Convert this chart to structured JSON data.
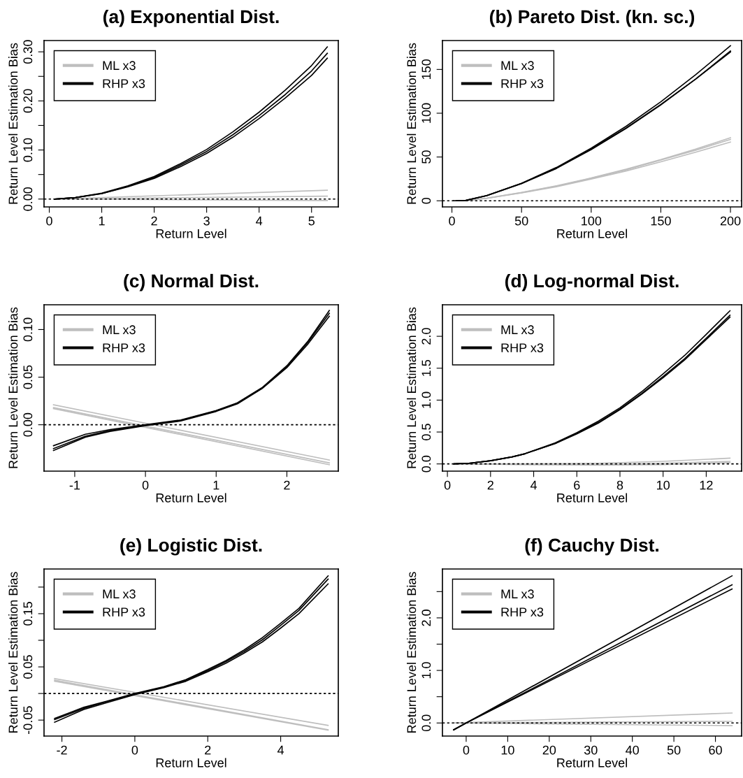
{
  "chart_data": [
    {
      "type": "line",
      "title": "(a) Exponential Dist.",
      "xlabel": "Return Level",
      "ylabel": "Return Level Estimation Bias",
      "legend": "top left",
      "xlim": [
        -0.1,
        5.51
      ],
      "xticks": [
        0,
        1,
        2,
        3,
        4,
        5
      ],
      "ylim": [
        -0.016,
        0.323
      ],
      "yticks": [
        {
          "value": 0,
          "label": "0.00"
        },
        {
          "value": 0.05,
          "label": null
        },
        {
          "value": 0.1,
          "label": "0.10"
        },
        {
          "value": 0.15,
          "label": null
        },
        {
          "value": 0.2,
          "label": "0.20"
        },
        {
          "value": 0.25,
          "label": null
        },
        {
          "value": 0.3,
          "label": "0.30"
        }
      ],
      "ref_lines": [
        {
          "axis": "y",
          "value": 0,
          "line_style": "dotted"
        }
      ],
      "series": [
        {
          "name": "ML x3",
          "color": "#bebebe",
          "x": [
            0.1,
            5.3
          ],
          "values": [
            0,
            0.018
          ]
        },
        {
          "color": "#bebebe",
          "x": [
            0.1,
            5.3
          ],
          "values": [
            0,
            0.006
          ]
        },
        {
          "color": "#bebebe",
          "x": [
            0.1,
            5.3
          ],
          "values": [
            0,
            -0.003
          ]
        },
        {
          "name": "RHP x3",
          "color": "#000000",
          "x": [
            0.1,
            0.5,
            1,
            1.5,
            2,
            2.5,
            3,
            3.5,
            4,
            4.5,
            5,
            5.3
          ],
          "values": [
            0,
            0.003,
            0.012,
            0.027,
            0.046,
            0.072,
            0.101,
            0.137,
            0.177,
            0.222,
            0.272,
            0.31
          ]
        },
        {
          "color": "#000000",
          "x": [
            0.1,
            0.5,
            1,
            1.5,
            2,
            2.5,
            3,
            3.5,
            4,
            4.5,
            5,
            5.3
          ],
          "values": [
            0,
            0.003,
            0.011,
            0.026,
            0.044,
            0.069,
            0.097,
            0.131,
            0.17,
            0.213,
            0.261,
            0.297
          ]
        },
        {
          "color": "#000000",
          "x": [
            0.1,
            0.5,
            1,
            1.5,
            2,
            2.5,
            3,
            3.5,
            4,
            4.5,
            5,
            5.3
          ],
          "values": [
            0,
            0.003,
            0.011,
            0.025,
            0.042,
            0.066,
            0.093,
            0.126,
            0.164,
            0.206,
            0.252,
            0.287
          ]
        }
      ]
    },
    {
      "type": "line",
      "title": "(b) Pareto Dist. (kn. sc.)",
      "xlabel": "Return Level",
      "ylabel": "Return Level Estimation Bias",
      "legend": "top left",
      "xlim": [
        -6.8,
        208
      ],
      "xticks": [
        0,
        50,
        100,
        150,
        200
      ],
      "ylim": [
        -7,
        183
      ],
      "yticks": [
        0,
        50,
        100,
        150
      ],
      "ref_lines": [
        {
          "axis": "y",
          "value": 0,
          "line_style": "dotted"
        }
      ],
      "series": [
        {
          "name": "ML x3",
          "color": "#bebebe",
          "x": [
            1,
            10,
            25,
            50,
            75,
            100,
            125,
            150,
            175,
            200
          ],
          "values": [
            0,
            0.3,
            3,
            9.5,
            17,
            26,
            36,
            47,
            59,
            72
          ]
        },
        {
          "color": "#bebebe",
          "x": [
            1,
            10,
            25,
            50,
            75,
            100,
            125,
            150,
            175,
            200
          ],
          "values": [
            0,
            0.3,
            2.9,
            9.3,
            16.6,
            25.7,
            35.4,
            46.5,
            57.8,
            70
          ]
        },
        {
          "color": "#bebebe",
          "x": [
            1,
            10,
            25,
            50,
            75,
            100,
            125,
            150,
            175,
            200
          ],
          "values": [
            0,
            0.3,
            2.8,
            9,
            16,
            24.8,
            34,
            44.5,
            55.5,
            67
          ]
        },
        {
          "name": "RHP x3",
          "color": "#000000",
          "x": [
            1,
            10,
            25,
            50,
            75,
            100,
            125,
            150,
            175,
            200
          ],
          "values": [
            0,
            0.5,
            6,
            20,
            38,
            60,
            85,
            113,
            144,
            177
          ]
        },
        {
          "color": "#000000",
          "x": [
            5,
            10,
            25,
            50,
            75,
            100,
            125,
            150,
            175,
            200
          ],
          "values": [
            0.1,
            0.5,
            6,
            20,
            37,
            59,
            83,
            110,
            139,
            171
          ]
        },
        {
          "color": "#000000",
          "x": [
            3,
            10,
            25,
            50,
            75,
            100,
            125,
            150,
            175,
            200
          ],
          "values": [
            0,
            0.4,
            5.8,
            19.5,
            37,
            58.5,
            82.5,
            109.5,
            139,
            170
          ]
        }
      ]
    },
    {
      "type": "line",
      "title": "(c) Normal Dist.",
      "xlabel": "Return Level",
      "ylabel": "Return Level Estimation Bias",
      "legend": "top left",
      "xlim": [
        -1.434,
        2.727
      ],
      "xticks": [
        -1,
        0,
        1,
        2
      ],
      "ylim": [
        -0.0487,
        0.126
      ],
      "yticks": [
        {
          "value": 0,
          "label": "0.00"
        },
        {
          "value": 0.05,
          "label": "0.05"
        },
        {
          "value": 0.1,
          "label": "0.10"
        }
      ],
      "ref_lines": [
        {
          "axis": "y",
          "value": 0,
          "line_style": "dotted"
        }
      ],
      "series": [
        {
          "name": "ML x3",
          "color": "#bebebe",
          "x": [
            -1.3,
            2.6
          ],
          "values": [
            0.021,
            -0.037
          ]
        },
        {
          "color": "#bebebe",
          "x": [
            -1.3,
            2.6
          ],
          "values": [
            0.018,
            -0.04
          ]
        },
        {
          "color": "#bebebe",
          "x": [
            -1.3,
            2.6
          ],
          "values": [
            0.017,
            -0.042
          ]
        },
        {
          "name": "RHP x3",
          "color": "#000000",
          "x": [
            -1.3,
            -0.85,
            -0.5,
            0,
            0.5,
            1,
            1.3,
            1.65,
            2,
            2.3,
            2.6
          ],
          "values": [
            -0.022,
            -0.01,
            -0.005,
            0,
            0.005,
            0.015,
            0.023,
            0.039,
            0.062,
            0.088,
            0.12
          ]
        },
        {
          "color": "#000000",
          "x": [
            -1.3,
            -0.85,
            -0.5,
            0,
            0.5,
            1,
            1.3,
            1.65,
            2,
            2.3,
            2.6
          ],
          "values": [
            -0.025,
            -0.012,
            -0.006,
            -0.0005,
            0.0045,
            0.0145,
            0.0225,
            0.0385,
            0.061,
            0.087,
            0.117
          ]
        },
        {
          "color": "#000000",
          "x": [
            -1.3,
            -0.85,
            -0.5,
            0,
            0.5,
            1,
            1.3,
            1.65,
            2,
            2.3,
            2.6
          ],
          "values": [
            -0.027,
            -0.013,
            -0.007,
            -0.001,
            0.004,
            0.014,
            0.022,
            0.038,
            0.06,
            0.085,
            0.114
          ]
        }
      ]
    },
    {
      "type": "line",
      "title": "(d) Log-normal Dist.",
      "xlabel": "Return Level",
      "ylabel": "Return Level Estimation Bias",
      "legend": "top left",
      "xlim": [
        -0.23,
        13.64
      ],
      "xticks": [
        0,
        2,
        4,
        6,
        8,
        10,
        12
      ],
      "ylim": [
        -0.113,
        2.494
      ],
      "yticks": [
        {
          "value": 0,
          "label": "0.0"
        },
        {
          "value": 0.5,
          "label": "0.5"
        },
        {
          "value": 1,
          "label": "1.0"
        },
        {
          "value": 1.5,
          "label": "1.5"
        },
        {
          "value": 2,
          "label": "2.0"
        }
      ],
      "ref_lines": [
        {
          "axis": "y",
          "value": 0,
          "line_style": "dotted"
        }
      ],
      "series": [
        {
          "name": "ML x3",
          "color": "#bebebe",
          "x": [
            0.3,
            4,
            7,
            10,
            13.1
          ],
          "values": [
            0,
            0,
            0.01,
            0.04,
            0.09
          ]
        },
        {
          "color": "#bebebe",
          "x": [
            0.3,
            4,
            7,
            10,
            13.1
          ],
          "values": [
            0,
            -0.01,
            -0.01,
            0.01,
            0.04
          ]
        },
        {
          "color": "#bebebe",
          "x": [
            0.3,
            4,
            7,
            10,
            13.1
          ],
          "values": [
            0,
            -0.01,
            -0.02,
            -0.01,
            0.02
          ]
        },
        {
          "name": "RHP x3",
          "color": "#000000",
          "x": [
            0.3,
            1,
            2,
            3,
            3.6,
            5,
            6,
            7,
            8,
            9,
            10,
            11,
            12,
            13.1
          ],
          "values": [
            0,
            0.01,
            0.05,
            0.11,
            0.16,
            0.33,
            0.49,
            0.67,
            0.88,
            1.13,
            1.41,
            1.7,
            2.03,
            2.4
          ]
        },
        {
          "color": "#000000",
          "x": [
            0.3,
            1,
            2,
            3,
            3.6,
            5,
            6,
            7,
            8,
            9,
            10,
            11,
            12,
            13.1
          ],
          "values": [
            0,
            0.01,
            0.05,
            0.11,
            0.16,
            0.32,
            0.48,
            0.65,
            0.86,
            1.1,
            1.37,
            1.65,
            1.97,
            2.33
          ]
        },
        {
          "color": "#000000",
          "x": [
            0.3,
            1,
            2,
            3,
            3.6,
            5,
            6,
            7,
            8,
            9,
            10,
            11,
            12,
            13.1
          ],
          "values": [
            0,
            0.01,
            0.05,
            0.11,
            0.16,
            0.32,
            0.47,
            0.64,
            0.85,
            1.09,
            1.35,
            1.63,
            1.95,
            2.3
          ]
        }
      ]
    },
    {
      "type": "line",
      "title": "(e) Logistic Dist.",
      "xlabel": "Return Level",
      "ylabel": "Return Level Estimation Bias",
      "legend": "top left",
      "xlim": [
        -2.49,
        5.58
      ],
      "xticks": [
        -2,
        0,
        2,
        4
      ],
      "ylim": [
        -0.08,
        0.234
      ],
      "yticks": [
        {
          "value": -0.05,
          "label": "-0.05"
        },
        {
          "value": 0,
          "label": null
        },
        {
          "value": 0.05,
          "label": "0.05"
        },
        {
          "value": 0.1,
          "label": null
        },
        {
          "value": 0.15,
          "label": "0.15"
        },
        {
          "value": 0.2,
          "label": null
        }
      ],
      "ref_lines": [
        {
          "axis": "y",
          "value": 0,
          "line_style": "dotted"
        }
      ],
      "series": [
        {
          "name": "ML x3",
          "color": "#bebebe",
          "x": [
            -2.2,
            5.3
          ],
          "values": [
            0.028,
            -0.06
          ]
        },
        {
          "color": "#bebebe",
          "x": [
            -2.2,
            5.3
          ],
          "values": [
            0.025,
            -0.068
          ]
        },
        {
          "color": "#bebebe",
          "x": [
            -2.2,
            5.3
          ],
          "values": [
            0.023,
            -0.069
          ]
        },
        {
          "name": "RHP x3",
          "color": "#000000",
          "x": [
            -2.2,
            -1.4,
            -0.8,
            0,
            0.8,
            1.4,
            2,
            2.5,
            3,
            3.5,
            4,
            4.5,
            5.3
          ],
          "values": [
            -0.047,
            -0.026,
            -0.015,
            0,
            0.013,
            0.026,
            0.045,
            0.062,
            0.082,
            0.105,
            0.132,
            0.16,
            0.221
          ]
        },
        {
          "color": "#000000",
          "x": [
            -2.2,
            -1.4,
            -0.8,
            0,
            0.8,
            1.4,
            2,
            2.5,
            3,
            3.5,
            4,
            4.5,
            5.3
          ],
          "values": [
            -0.049,
            -0.028,
            -0.016,
            -0.001,
            0.012,
            0.025,
            0.043,
            0.06,
            0.079,
            0.101,
            0.128,
            0.156,
            0.215
          ]
        },
        {
          "color": "#000000",
          "x": [
            -2.2,
            -1.4,
            -0.8,
            0,
            0.8,
            1.4,
            2,
            2.5,
            3,
            3.5,
            4,
            4.5,
            5.3
          ],
          "values": [
            -0.054,
            -0.03,
            -0.018,
            -0.002,
            0.011,
            0.023,
            0.041,
            0.057,
            0.076,
            0.097,
            0.123,
            0.15,
            0.206
          ]
        }
      ]
    },
    {
      "type": "line",
      "title": "(f) Cauchy Dist.",
      "xlabel": "Return Level",
      "ylabel": "Return Level Estimation Bias",
      "legend": "top left",
      "xlim": [
        -5.71,
        66.3
      ],
      "xticks": [
        0,
        10,
        20,
        30,
        40,
        50,
        60
      ],
      "ylim": [
        -0.249,
        2.93
      ],
      "yticks": [
        {
          "value": 0,
          "label": "0.0"
        },
        {
          "value": 0.5,
          "label": null
        },
        {
          "value": 1,
          "label": "1.0"
        },
        {
          "value": 1.5,
          "label": null
        },
        {
          "value": 2,
          "label": "2.0"
        },
        {
          "value": 2.5,
          "label": null
        }
      ],
      "ref_lines": [
        {
          "axis": "y",
          "value": 0,
          "line_style": "dotted"
        }
      ],
      "series": [
        {
          "name": "ML x3",
          "color": "#bebebe",
          "x": [
            -3,
            64
          ],
          "values": [
            0,
            0.19
          ]
        },
        {
          "color": "#bebebe",
          "x": [
            -3,
            64
          ],
          "values": [
            0,
            0.03
          ]
        },
        {
          "color": "#bebebe",
          "x": [
            -3,
            64
          ],
          "values": [
            0,
            -0.05
          ]
        },
        {
          "name": "RHP x3",
          "color": "#000000",
          "x": [
            -3,
            0,
            64
          ],
          "values": [
            -0.13,
            0,
            2.8
          ]
        },
        {
          "color": "#000000",
          "x": [
            -3,
            0,
            64
          ],
          "values": [
            -0.13,
            0,
            2.63
          ]
        },
        {
          "color": "#000000",
          "x": [
            -3,
            0,
            64
          ],
          "values": [
            -0.13,
            0,
            2.55
          ]
        }
      ]
    }
  ]
}
